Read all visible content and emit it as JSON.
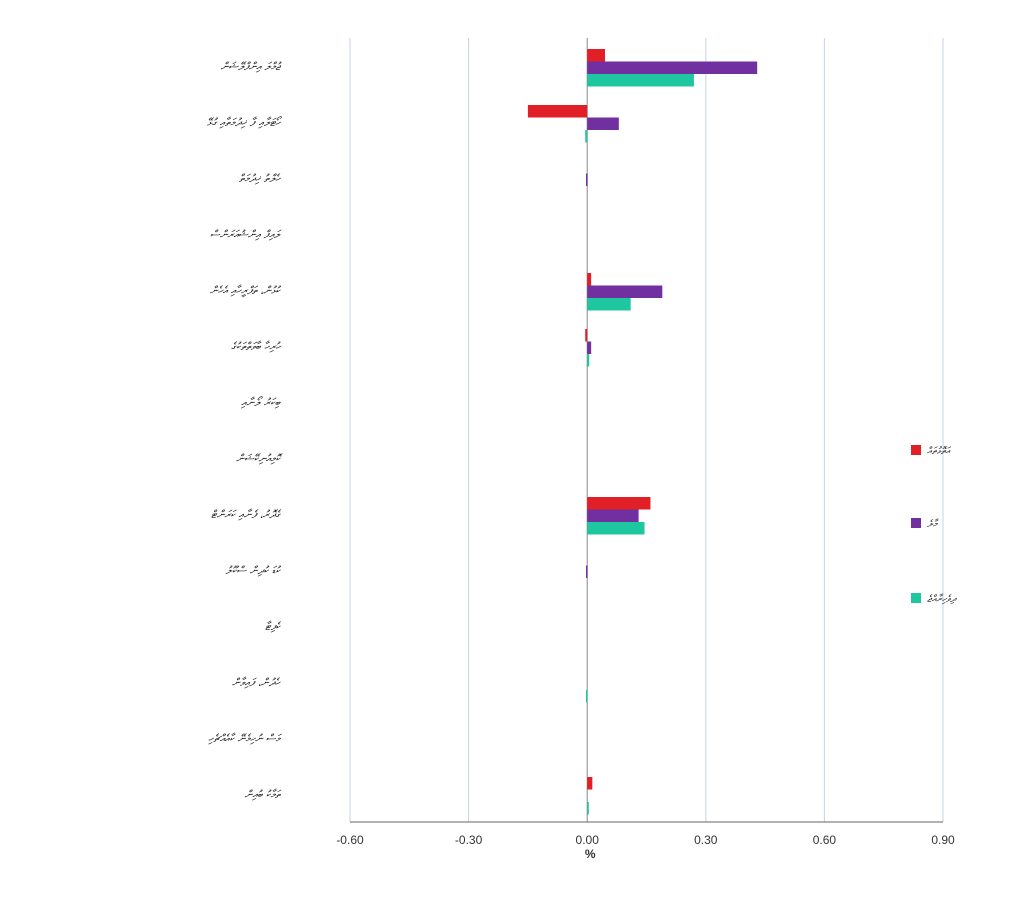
{
  "chart_data": {
    "type": "bar",
    "orientation": "horizontal",
    "xlabel": "%",
    "xlim": [
      -0.6,
      0.9
    ],
    "xticks": [
      -0.6,
      -0.3,
      0.0,
      0.3,
      0.6,
      0.9
    ],
    "xtick_labels": [
      "-0.60",
      "-0.30",
      "0.00",
      "0.30",
      "0.60",
      "0.90"
    ],
    "grid": "vertical",
    "legend_position": "right",
    "categories": [
      "ޖުމްލަ އިންފްލޭޝަން",
      "ހޯޓަލާއި ފާ ޚިދުމަތާއި ގުޅޭ",
      "ހެލްތު ޚިދުމަތް",
      "ލައިފް އިންޝުއަރަންސް",
      "ކުޅުން، ތަފްރީހާއި އެހެން",
      "ހުރިހާ ބާވަތްތަކުގެ",
      "ބިކަރު ލޯނާއި",
      "ކޮމިއުނިކޭޝަން",
      "ގެދޮރު، ފެނާއި ކަރަންޓް",
      "ކުޑަ ކުދިން ސްކޫލު",
      "ކެފިޓާ",
      "ހެދުން، ފައިވާން",
      "މަސް ނުހިމެނޭ ކާއެއްޗެހި",
      "ތަމާކު ބުއިން"
    ],
    "series": [
      {
        "name": "އަތޮޅުތައް",
        "color": "#e01f26",
        "values": [
          0.045,
          -0.15,
          0.0,
          0.0,
          0.01,
          -0.005,
          0.0,
          0.0,
          0.16,
          0.0,
          0.0,
          0.0,
          0.0,
          0.013
        ]
      },
      {
        "name": "މާލެ",
        "color": "#7030a0",
        "values": [
          0.43,
          0.08,
          -0.003,
          0.0,
          0.19,
          0.01,
          0.0,
          0.0,
          0.13,
          -0.003,
          0.0,
          0.0,
          0.0,
          0.0
        ]
      },
      {
        "name": "ދިވެހިރާއްޖެ",
        "color": "#1ec7a0",
        "values": [
          0.27,
          -0.005,
          0.0,
          0.0,
          0.11,
          0.005,
          0.0,
          0.0,
          0.145,
          0.0,
          0.0,
          -0.003,
          0.0,
          0.004
        ]
      }
    ]
  }
}
